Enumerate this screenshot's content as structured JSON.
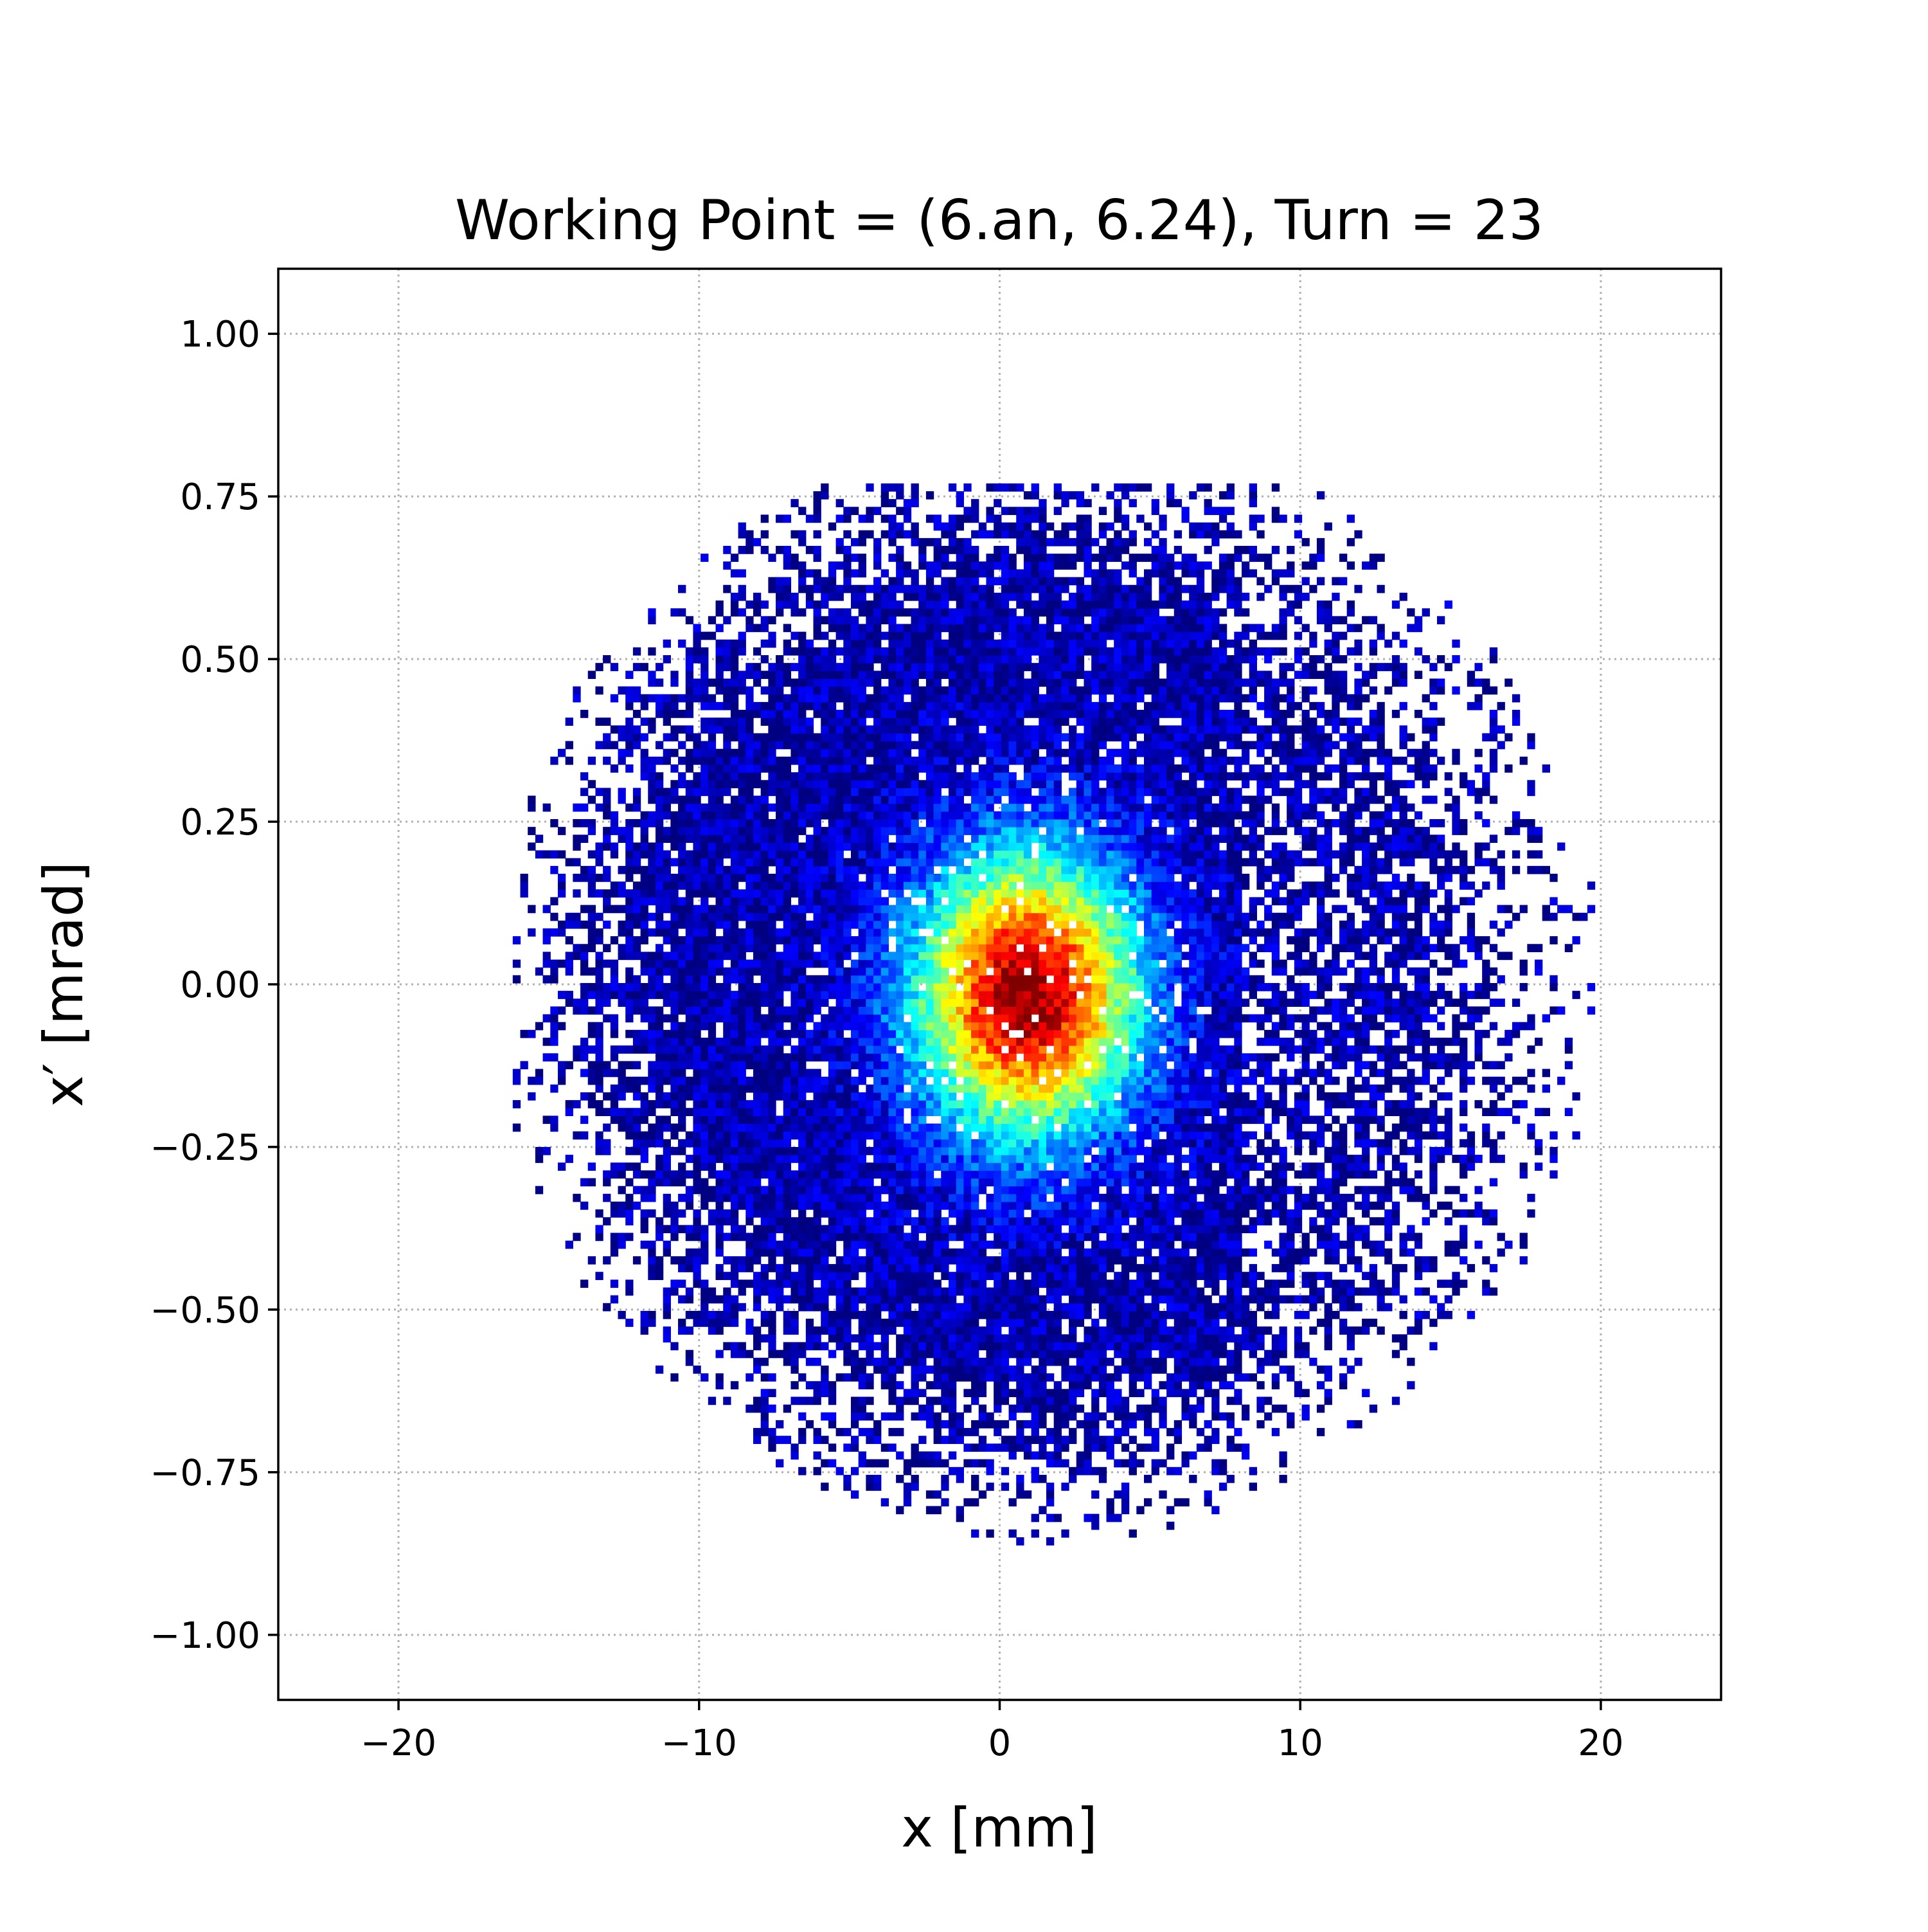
{
  "chart_data": {
    "type": "heatmap",
    "title": "Working Point = (6.an, 6.24), Turn = 23",
    "xlabel": "x [mm]",
    "ylabel": "x′ [mrad]",
    "xlim": [
      -24,
      24
    ],
    "ylim": [
      -1.1,
      1.1
    ],
    "xticks": [
      -20,
      -10,
      0,
      10,
      20
    ],
    "xtick_labels": [
      "−20",
      "−10",
      "0",
      "10",
      "20"
    ],
    "yticks": [
      1.0,
      0.75,
      0.5,
      0.25,
      0.0,
      -0.25,
      -0.5,
      -0.75,
      -1.0
    ],
    "ytick_labels": [
      "1.00",
      "0.75",
      "0.50",
      "0.25",
      "0.00",
      "−0.25",
      "−0.50",
      "−0.75",
      "−1.00"
    ],
    "grid": true,
    "colormap": "jet",
    "bin_size": {
      "x": 0.25,
      "y": 0.012
    },
    "distribution": {
      "core_center": [
        0.8,
        -0.02
      ],
      "core_sigma": [
        2.6,
        0.15
      ],
      "halo_center": [
        1.5,
        0.0
      ],
      "halo_radius": [
        17.0,
        0.8
      ],
      "x_range": [
        -16.2,
        19.7
      ],
      "y_range": [
        -0.91,
        0.77
      ]
    }
  }
}
